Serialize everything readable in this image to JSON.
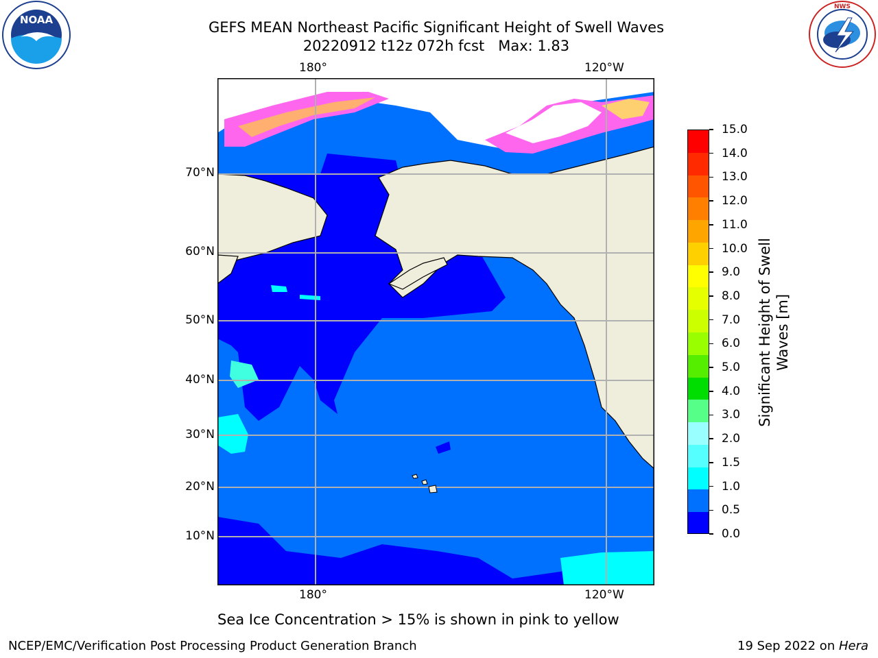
{
  "header": {
    "title_line1": "GEFS MEAN Northeast Pacific Significant Height of Swell Waves",
    "title_line2": "20220912 t12z 072h fcst   Max: 1.83"
  },
  "logos": {
    "noaa_text": "NOAA",
    "noaa_ring_text": "NATIONAL OCEANIC AND ATMOSPHERIC ADMINISTRATION · U.S. DEPARTMENT OF COMMERCE",
    "nws_ring_text": "NATIONAL WEATHER SERVICE"
  },
  "map": {
    "lon_ticks_top": [
      "180°",
      "120°W"
    ],
    "lon_ticks_bottom": [
      "180°",
      "120°W"
    ],
    "lat_ticks": [
      "70°N",
      "60°N",
      "50°N",
      "40°N",
      "30°N",
      "20°N",
      "10°N"
    ],
    "colors": {
      "land": "#efeddc",
      "ice_white": "#ffffff",
      "ice_pink": "#ff66ee",
      "ice_orange": "#ffb070",
      "swell_0_0.5": "#0000ff",
      "swell_0.5_1.0": "#0070ff",
      "swell_1.0_1.5": "#00ffff",
      "swell_1.5_2.0": "#40ffe0"
    }
  },
  "colorbar": {
    "label": "Significant Height of Swell\nWaves [m]",
    "label_line1": "Significant Height of Swell",
    "label_line2": "Waves [m]",
    "ticks": [
      "15.0",
      "14.0",
      "13.0",
      "12.0",
      "11.0",
      "10.0",
      "9.0",
      "8.0",
      "7.0",
      "6.0",
      "5.0",
      "4.0",
      "3.0",
      "2.0",
      "1.5",
      "1.0",
      "0.5",
      "0.0"
    ],
    "colors_top_to_bottom": [
      "#ff0000",
      "#ff2a00",
      "#ff5500",
      "#ff7f00",
      "#ffa500",
      "#ffd000",
      "#ffff00",
      "#e6ff00",
      "#ccff00",
      "#99ff00",
      "#55ee00",
      "#00dd00",
      "#55ff88",
      "#99ffff",
      "#55ffff",
      "#00ffff",
      "#0070ff",
      "#0000ff"
    ]
  },
  "note": "Sea Ice Concentration > 15% is shown in pink to yellow",
  "footer": {
    "left": "NCEP/EMC/Verification Post Processing Product Generation Branch",
    "right_prefix": "19 Sep 2022 on ",
    "right_host": "Hera"
  }
}
